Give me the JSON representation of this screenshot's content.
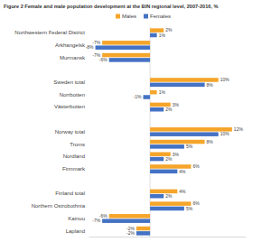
{
  "chart_data": {
    "type": "bar",
    "orientation": "horizontal",
    "title": "Figure 2 Female and male population development at the BIN regional level, 2007-2016, %",
    "categories": [
      "Northwestern Federal District",
      "Arkhangelsk",
      "Murmansk",
      null,
      "Sweden total",
      "Norrbotten",
      "Västerbotten",
      null,
      "Norway total",
      "Troms",
      "Nordland",
      "Finnmark",
      null,
      "Finland total",
      "Northern Ostrobothnia",
      "Kainuu",
      "Lapland"
    ],
    "series": [
      {
        "name": "Males",
        "color": "#f5a52a",
        "values": [
          2,
          -7,
          -7,
          null,
          10,
          1,
          3,
          null,
          12,
          8,
          3,
          6,
          null,
          4,
          6,
          -6,
          -2
        ],
        "value_labels": [
          "2%",
          "-7%",
          "-7%",
          null,
          "10%",
          "1%",
          "3%",
          null,
          "12%",
          "8%",
          "3%",
          "6%",
          null,
          "4%",
          "6%",
          "-6%",
          "-2%"
        ]
      },
      {
        "name": "Females",
        "color": "#4472c4",
        "values": [
          1,
          -8,
          -6,
          null,
          8,
          -1,
          2,
          null,
          10,
          5,
          2,
          4,
          null,
          2,
          5,
          -7,
          -2
        ],
        "value_labels": [
          "1%",
          "-8%",
          "-6%",
          null,
          "8%",
          "-1%",
          "2%",
          null,
          "10%",
          "5%",
          "2%",
          "4%",
          null,
          "2%",
          "5%",
          "-7%",
          "-2%"
        ]
      }
    ],
    "xlim": [
      -9,
      14
    ],
    "legend": "top",
    "data_labels": true,
    "tick_labels": false,
    "grid": false
  }
}
